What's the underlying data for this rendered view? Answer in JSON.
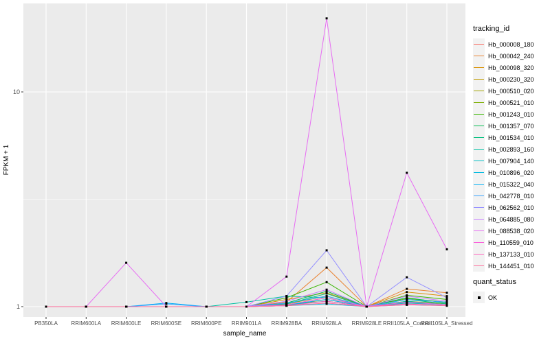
{
  "chart_data": {
    "type": "line",
    "title": "",
    "xlabel": "sample_name",
    "ylabel": "FPKM + 1",
    "yscale": "log10",
    "yticks": [
      1,
      10
    ],
    "ytick_labels": [
      "1",
      "10"
    ],
    "ylim": [
      0.93,
      25
    ],
    "grid": "on",
    "panel_bg": "#EBEBEB",
    "grid_color": "#FFFFFF",
    "tick_color": "#333333",
    "tick_label_color": "#4D4D4D",
    "point_marker": {
      "shape": "square",
      "color": "#000000",
      "size": 3
    },
    "categories": [
      "PB350LA",
      "RRIM600LA",
      "RRIM600LE",
      "RRIM600SE",
      "RRIM600PE",
      "RRIM901LA",
      "RRIM928BA",
      "RRIM928LA",
      "RRIM928LE",
      "RRII105LA_Control",
      "RRII105LA_Stressed"
    ],
    "series": [
      {
        "name": "Hb_000008_180",
        "color": "#F8766D",
        "values": [
          1,
          1,
          1,
          1,
          1,
          1,
          1.02,
          1.06,
          1,
          1.04,
          1.02
        ]
      },
      {
        "name": "Hb_000042_240",
        "color": "#EA8331",
        "values": [
          1,
          1,
          1,
          1,
          1,
          1,
          1.05,
          1.52,
          1,
          1.21,
          1.16
        ]
      },
      {
        "name": "Hb_000098_320",
        "color": "#D89000",
        "values": [
          1,
          1,
          1,
          1,
          1,
          1,
          1.08,
          1.16,
          1,
          1.17,
          1.12
        ]
      },
      {
        "name": "Hb_000230_320",
        "color": "#C09B00",
        "values": [
          1,
          1,
          1,
          1,
          1,
          1,
          1.02,
          1.1,
          1,
          1.06,
          1.03
        ]
      },
      {
        "name": "Hb_000510_020",
        "color": "#A3A500",
        "values": [
          1,
          1,
          1,
          1,
          1,
          1,
          1.01,
          1.08,
          1,
          1.05,
          1.02
        ]
      },
      {
        "name": "Hb_000521_010",
        "color": "#7CAE00",
        "values": [
          1,
          1,
          1,
          1,
          1,
          1,
          1.03,
          1.12,
          1,
          1.09,
          1.05
        ]
      },
      {
        "name": "Hb_001243_010",
        "color": "#39B600",
        "values": [
          1,
          1,
          1,
          1,
          1,
          1,
          1.1,
          1.3,
          1,
          1.13,
          1.08
        ]
      },
      {
        "name": "Hb_001357_070",
        "color": "#00BB4E",
        "values": [
          1,
          1,
          1,
          1,
          1,
          1,
          1.04,
          1.18,
          1,
          1.1,
          1.04
        ]
      },
      {
        "name": "Hb_001534_010",
        "color": "#00BF7D",
        "values": [
          1,
          1,
          1,
          1,
          1,
          1,
          1.03,
          1.15,
          1,
          1.08,
          1.03
        ]
      },
      {
        "name": "Hb_002893_160",
        "color": "#00C1A3",
        "values": [
          1,
          1,
          1,
          1,
          1,
          1.05,
          1.12,
          1.1,
          1,
          1.06,
          1.02
        ]
      },
      {
        "name": "Hb_007904_140",
        "color": "#00BFC4",
        "values": [
          1,
          1,
          1,
          1,
          1,
          1,
          1.02,
          1.06,
          1,
          1.04,
          1.02
        ]
      },
      {
        "name": "Hb_010896_020",
        "color": "#00BAE0",
        "values": [
          1,
          1,
          1,
          1,
          1,
          1,
          1.01,
          1.03,
          1,
          1.02,
          1.01
        ]
      },
      {
        "name": "Hb_015322_040",
        "color": "#00B0F6",
        "values": [
          1,
          1,
          1,
          1.04,
          1,
          1,
          1.02,
          1.08,
          1,
          1.05,
          1.02
        ]
      },
      {
        "name": "Hb_042778_010",
        "color": "#35A2FF",
        "values": [
          1,
          1,
          1,
          1.03,
          1,
          1,
          1.04,
          1.12,
          1,
          1.08,
          1.05
        ]
      },
      {
        "name": "Hb_062562_010",
        "color": "#9590FF",
        "values": [
          1,
          1,
          1,
          1,
          1,
          1,
          1.12,
          1.83,
          1,
          1.37,
          1.1
        ]
      },
      {
        "name": "Hb_064885_080",
        "color": "#C77CFF",
        "values": [
          1,
          1,
          1,
          1,
          1,
          1,
          1.06,
          1.2,
          1,
          1.12,
          1.06
        ]
      },
      {
        "name": "Hb_088538_020",
        "color": "#E76BF3",
        "values": [
          1,
          1,
          1.6,
          1,
          1,
          1,
          1.38,
          22,
          1,
          4.2,
          1.85
        ]
      },
      {
        "name": "Hb_110559_010",
        "color": "#FA62DB",
        "values": [
          1,
          1,
          1,
          1,
          1,
          1,
          1.02,
          1.1,
          1,
          1.05,
          1.02
        ]
      },
      {
        "name": "Hb_137133_010",
        "color": "#FF62BC",
        "values": [
          1,
          1,
          1,
          1,
          1,
          1,
          1.01,
          1.06,
          1,
          1.03,
          1.01
        ]
      },
      {
        "name": "Hb_144451_010",
        "color": "#FF6A98",
        "values": [
          1,
          1,
          1,
          1,
          1,
          1,
          1.01,
          1.04,
          1,
          1.02,
          1.01
        ]
      }
    ],
    "legend": {
      "color_title": "tracking_id",
      "shape_title": "quant_status",
      "shape_items": [
        {
          "label": "OK"
        }
      ],
      "position": "right"
    }
  }
}
